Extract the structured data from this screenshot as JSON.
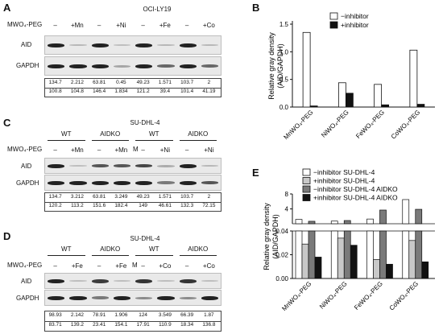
{
  "panels": {
    "A": {
      "letter": "A",
      "title": "OCI-LY19",
      "treat_label": "MWO₄-PEG",
      "treat_cols": [
        "–",
        "+Mn",
        "–",
        "+Ni",
        "–",
        "+Fe",
        "–",
        "+Co"
      ],
      "rows": [
        "AID",
        "GAPDH"
      ],
      "aid_values": [
        "134.7",
        "2.212",
        "63.81",
        "0.45",
        "49.23",
        "1.571",
        "103.7",
        "2"
      ],
      "gapdh_values": [
        "100.8",
        "104.8",
        "146.4",
        "1.834",
        "121.2",
        "39.4",
        "101.4",
        "41.19"
      ],
      "aid_strength": [
        1,
        0.15,
        1,
        0.1,
        1,
        0.15,
        1,
        0.15
      ],
      "gapdh_strength": [
        1,
        1,
        1,
        0.25,
        1,
        0.6,
        1,
        0.6
      ]
    },
    "C": {
      "letter": "C",
      "title": "SU-DHL-4",
      "group_labels": [
        "WT",
        "AIDKO",
        "WT",
        "AIDKO"
      ],
      "treat_label": "MWO₄-PEG",
      "treat_cols": [
        "–",
        "+Mn",
        "–",
        "+Mn",
        "–",
        "+Ni",
        "–",
        "+Ni"
      ],
      "marker": "M",
      "rows": [
        "AID",
        "GAPDH"
      ],
      "aid_values": [
        "134.7",
        "3.212",
        "63.81",
        "3.249",
        "49.23",
        "1.571",
        "103.7",
        "2"
      ],
      "gapdh_values": [
        "120.2",
        "113.2",
        "151.6",
        "182.4",
        "149",
        "46.61",
        "132.3",
        "72.15"
      ],
      "aid_strength": [
        1,
        0.1,
        0.7,
        0.7,
        0.8,
        0.2,
        1,
        0.15
      ],
      "gapdh_strength": [
        1,
        1,
        1,
        1,
        1,
        0.5,
        1,
        0.7
      ]
    },
    "D": {
      "letter": "D",
      "title": "SU-DHL-4",
      "group_labels": [
        "WT",
        "AIDKO",
        "WT",
        "AIDKO"
      ],
      "treat_label": "MWO₄-PEG",
      "treat_cols": [
        "–",
        "+Fe",
        "–",
        "+Fe",
        "–",
        "+Co",
        "–",
        "+Co"
      ],
      "marker": "M",
      "rows": [
        "AID",
        "GAPDH"
      ],
      "aid_values": [
        "98.93",
        "2.142",
        "78.91",
        "1.906",
        "124",
        "3.549",
        "66.39",
        "1.87"
      ],
      "gapdh_values": [
        "83.71",
        "139.2",
        "23.41",
        "154.1",
        "17.91",
        "110.9",
        "18.34",
        "136.8"
      ],
      "aid_strength": [
        1,
        0.1,
        0.85,
        0.1,
        0.9,
        0.1,
        0.9,
        0.1
      ],
      "gapdh_strength": [
        1,
        1,
        0.5,
        1,
        0.4,
        1,
        0.4,
        1
      ]
    }
  },
  "chart_data": [
    {
      "type": "bar",
      "panel": "B",
      "categories": [
        "MnWO₄-PEG",
        "NiWO₄-PEG",
        "FeWO₄-PEG",
        "CoWO₄-PEG"
      ],
      "series": [
        {
          "name": "−inhibitor",
          "color": "#ffffff",
          "values": [
            1.35,
            0.44,
            0.41,
            1.03
          ]
        },
        {
          "name": "+inhibitor",
          "color": "#111111",
          "values": [
            0.02,
            0.25,
            0.04,
            0.05
          ]
        }
      ],
      "ylabel": "Relative gray density (AID/GAPDH)",
      "legend": "top-right"
    },
    {
      "type": "bar",
      "panel": "E",
      "categories": [
        "MnWO₄-PEG",
        "NiWO₄-PEG",
        "FeWO₄-PEG",
        "CoWO₄-PEG"
      ],
      "series": [
        {
          "name": "−inhibitor SU-DHL-4",
          "color": "#ffffff",
          "values": [
            1.2,
            0.75,
            1.3,
            6.5
          ]
        },
        {
          "name": "+inhibitor SU-DHL-4",
          "color": "#c8c8c8",
          "values": [
            0.029,
            0.034,
            0.016,
            0.032
          ]
        },
        {
          "name": "−inhibitor SU-DHL-4 AIDKO",
          "color": "#7a7a7a",
          "values": [
            0.7,
            0.9,
            3.7,
            3.9
          ]
        },
        {
          "name": "+inhibitor SU-DHL-4 AIDKO",
          "color": "#111111",
          "values": [
            0.018,
            0.028,
            0.012,
            0.014
          ]
        }
      ],
      "ylabel": "Relative gray density (AID/GAPDH)",
      "broken_axis": {
        "lower": [
          0,
          0.04
        ],
        "upper": [
          0.04,
          8
        ]
      },
      "yticks_lower": [
        "0.00",
        "0.02",
        "0.04"
      ],
      "yticks_upper": [
        "4",
        "8"
      ],
      "legend": "top"
    }
  ],
  "labels": {
    "B": "B",
    "E": "E",
    "B_ticks": [
      "0.0",
      "0.5",
      "1.0",
      "1.5"
    ]
  }
}
